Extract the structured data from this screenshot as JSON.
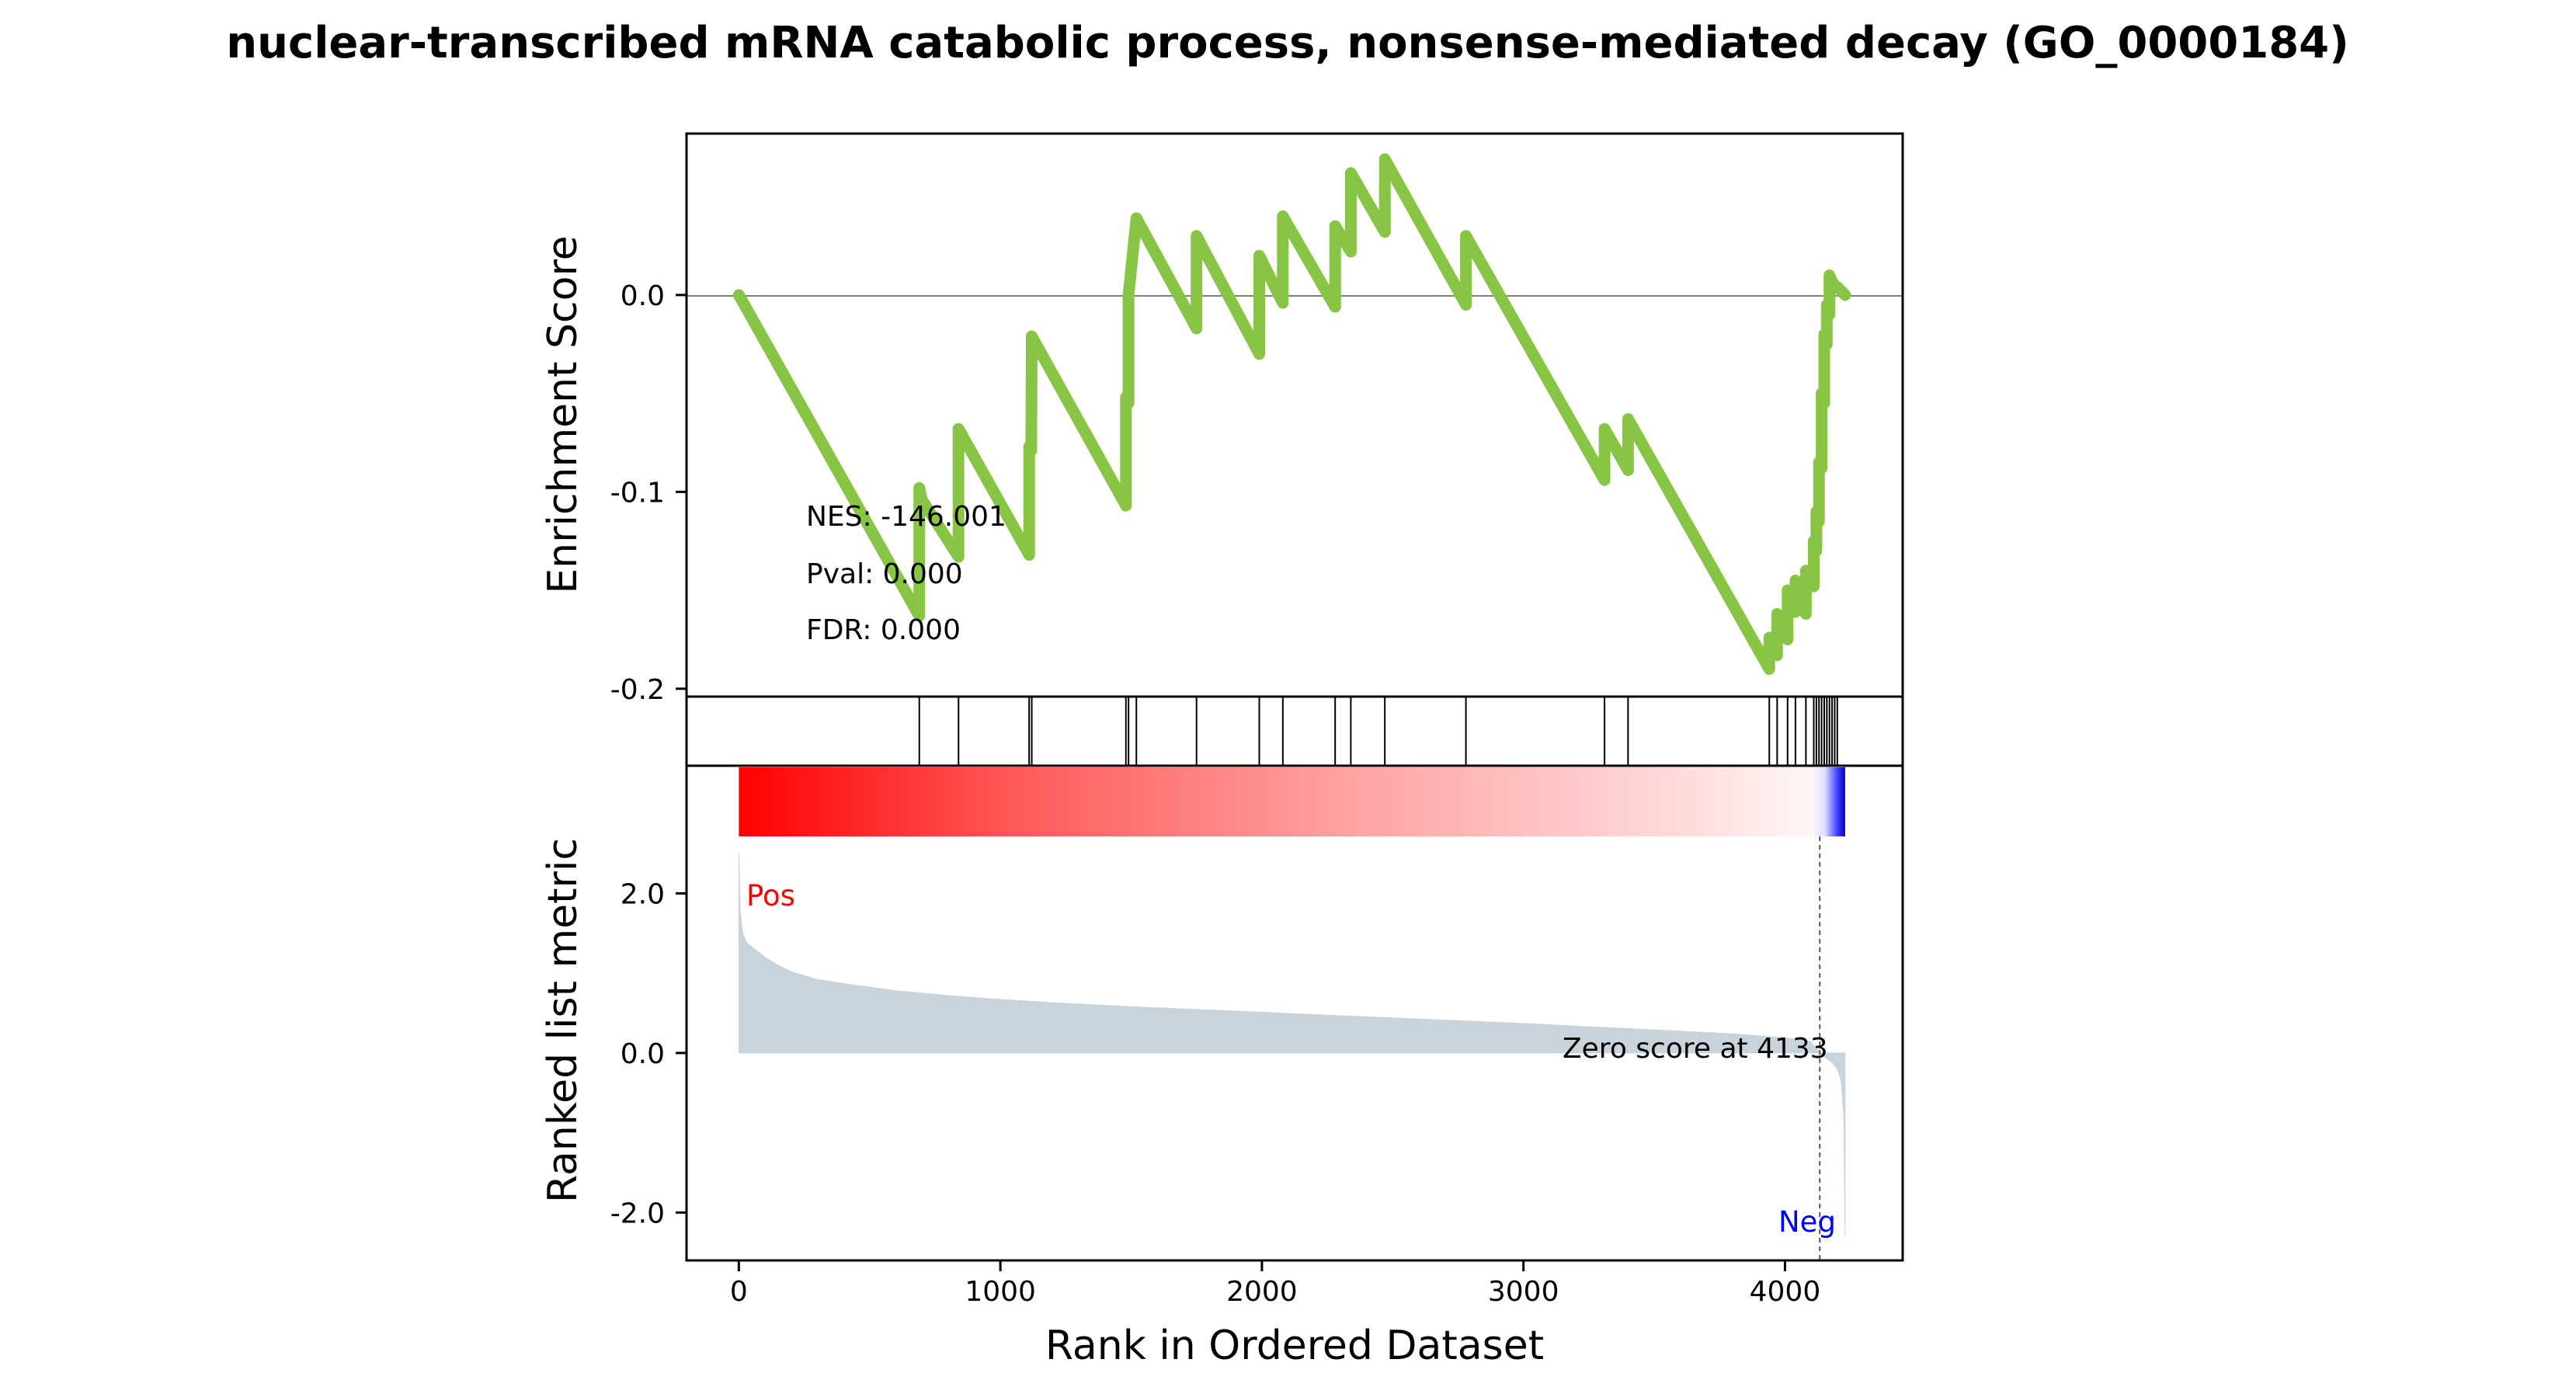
{
  "chart_data": {
    "type": "line",
    "title": "nuclear-transcribed mRNA catabolic process, nonsense-mediated decay (GO_0000184)",
    "xlabel": "Rank in Ordered Dataset",
    "ylabel_top": "Enrichment Score",
    "ylabel_bottom": "Ranked list metric",
    "xlim": [
      -200,
      4450
    ],
    "x_ticks": [
      0,
      1000,
      2000,
      3000,
      4000
    ],
    "x_tick_labels": [
      "0",
      "1000",
      "2000",
      "3000",
      "4000"
    ],
    "es_ylim": [
      -0.204,
      0.082
    ],
    "es_ticks": [
      0.0,
      -0.1,
      -0.2
    ],
    "es_tick_labels": [
      "0.0",
      "-0.1",
      "-0.2"
    ],
    "metric_ylim": [
      -2.6,
      3.6
    ],
    "metric_ticks": [
      2.0,
      0.0,
      -2.0
    ],
    "metric_tick_labels": [
      "2.0",
      "0.0",
      "-2.0"
    ],
    "stats": {
      "nes": "NES: -146.001",
      "pval": "Pval: 0.000",
      "fdr": "FDR: 0.000"
    },
    "labels": {
      "pos": "Pos",
      "neg": "Neg",
      "zero_score": "Zero score at 4133"
    },
    "zero_score_rank": 4133,
    "n_genes": 4230,
    "hits": [
      690,
      840,
      1110,
      1120,
      1480,
      1490,
      1520,
      1750,
      1990,
      2080,
      2280,
      2340,
      2470,
      2780,
      3310,
      3400,
      3940,
      3970,
      4010,
      4040,
      4080,
      4110,
      4120,
      4130,
      4140,
      4150,
      4160,
      4170,
      4180,
      4190,
      4200
    ],
    "es_series": {
      "name": "",
      "x": [
        0,
        690,
        690,
        700,
        840,
        840,
        1110,
        1110,
        1118,
        1120,
        1480,
        1480,
        1490,
        1490,
        1520,
        1750,
        1750,
        1990,
        1990,
        2080,
        2080,
        2280,
        2280,
        2340,
        2340,
        2470,
        2470,
        2780,
        2780,
        3310,
        3310,
        3400,
        3400,
        3940,
        3940,
        3970,
        3970,
        4010,
        4010,
        4040,
        4040,
        4080,
        4080,
        4110,
        4110,
        4120,
        4120,
        4130,
        4130,
        4140,
        4140,
        4150,
        4150,
        4160,
        4160,
        4170,
        4170,
        4180,
        4180,
        4190,
        4190,
        4200,
        4230
      ],
      "y": [
        0.0,
        -0.163,
        -0.098,
        -0.104,
        -0.133,
        -0.068,
        -0.132,
        -0.077,
        -0.079,
        -0.021,
        -0.107,
        -0.052,
        -0.055,
        0.0,
        0.039,
        -0.017,
        0.03,
        -0.03,
        0.02,
        -0.004,
        0.04,
        -0.006,
        0.035,
        0.022,
        0.062,
        0.032,
        0.069,
        -0.005,
        0.03,
        -0.094,
        -0.068,
        -0.089,
        -0.063,
        -0.19,
        -0.174,
        -0.183,
        -0.162,
        -0.175,
        -0.15,
        -0.161,
        -0.145,
        -0.162,
        -0.14,
        -0.148,
        -0.125,
        -0.13,
        -0.11,
        -0.115,
        -0.085,
        -0.088,
        -0.05,
        -0.055,
        -0.02,
        -0.025,
        -0.005,
        -0.01,
        0.01,
        0.006,
        0.007,
        0.004,
        0.005,
        0.004,
        0.0
      ]
    },
    "metric_series": {
      "name": "",
      "x": [
        0,
        5,
        15,
        30,
        60,
        100,
        150,
        200,
        250,
        300,
        400,
        600,
        800,
        1000,
        1200,
        1500,
        2000,
        2500,
        3000,
        3500,
        3800,
        4000,
        4100,
        4133,
        4150,
        4180,
        4200,
        4215,
        4225,
        4230
      ],
      "y": [
        2.5,
        1.8,
        1.5,
        1.38,
        1.3,
        1.2,
        1.1,
        1.02,
        0.97,
        0.92,
        0.87,
        0.78,
        0.72,
        0.67,
        0.63,
        0.58,
        0.51,
        0.44,
        0.37,
        0.29,
        0.24,
        0.19,
        0.14,
        0.0,
        -0.05,
        -0.12,
        -0.2,
        -0.35,
        -0.8,
        -2.3
      ]
    },
    "colors": {
      "es_line": "#88c544",
      "metric_fill": "#c9d3dc",
      "pos": "#ff0000",
      "neg": "#0000ff",
      "zero_line": "#808080",
      "hit": "#000000"
    }
  }
}
